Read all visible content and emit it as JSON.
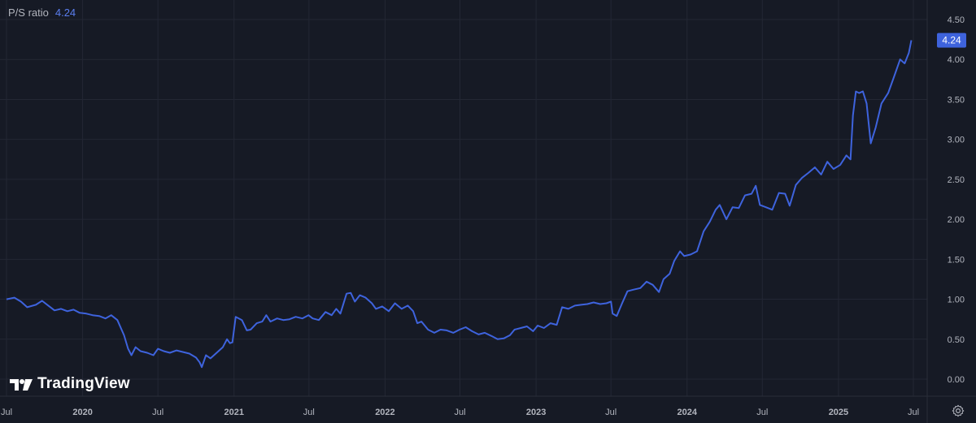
{
  "legend": {
    "label": "P/S ratio",
    "value": "4.24"
  },
  "brand": {
    "name": "TradingView"
  },
  "icons": {
    "logo": "tradingview-logo-icon",
    "settings": "gear-icon"
  },
  "colors": {
    "background": "#161a25",
    "line": "#3e63dd",
    "grid": "#232734",
    "axis_text": "#b2b5be",
    "badge": "#3e63dd"
  },
  "chart_data": {
    "type": "line",
    "title": "",
    "xlabel": "",
    "ylabel": "",
    "grid": true,
    "y_axis_position": "right",
    "ylim": [
      -0.1,
      4.6
    ],
    "y_ticks": [
      "0.00",
      "0.50",
      "1.00",
      "1.50",
      "2.00",
      "2.50",
      "3.00",
      "3.50",
      "4.00",
      "4.50"
    ],
    "x_range": [
      "2019-07-01",
      "2025-07-15"
    ],
    "x_ticks": [
      {
        "date": "2019-07-01",
        "label": "Jul"
      },
      {
        "date": "2020-01-01",
        "label": "2020"
      },
      {
        "date": "2020-07-01",
        "label": "Jul"
      },
      {
        "date": "2021-01-01",
        "label": "2021"
      },
      {
        "date": "2021-07-01",
        "label": "Jul"
      },
      {
        "date": "2022-01-01",
        "label": "2022"
      },
      {
        "date": "2022-07-01",
        "label": "Jul"
      },
      {
        "date": "2023-01-01",
        "label": "2023"
      },
      {
        "date": "2023-07-01",
        "label": "Jul"
      },
      {
        "date": "2024-01-01",
        "label": "2024"
      },
      {
        "date": "2024-07-01",
        "label": "Jul"
      },
      {
        "date": "2025-01-01",
        "label": "2025"
      },
      {
        "date": "2025-07-01",
        "label": "Jul"
      }
    ],
    "last_value_label": "4.24",
    "series": [
      {
        "name": "P/S ratio",
        "points": [
          [
            "2019-07-01",
            1.0
          ],
          [
            "2019-07-20",
            1.02
          ],
          [
            "2019-08-05",
            0.97
          ],
          [
            "2019-08-20",
            0.9
          ],
          [
            "2019-09-10",
            0.93
          ],
          [
            "2019-09-25",
            0.98
          ],
          [
            "2019-10-10",
            0.92
          ],
          [
            "2019-10-25",
            0.86
          ],
          [
            "2019-11-10",
            0.88
          ],
          [
            "2019-11-25",
            0.85
          ],
          [
            "2019-12-10",
            0.87
          ],
          [
            "2019-12-25",
            0.83
          ],
          [
            "2020-01-10",
            0.82
          ],
          [
            "2020-01-25",
            0.8
          ],
          [
            "2020-02-10",
            0.79
          ],
          [
            "2020-02-25",
            0.76
          ],
          [
            "2020-03-10",
            0.8
          ],
          [
            "2020-03-25",
            0.74
          ],
          [
            "2020-04-10",
            0.55
          ],
          [
            "2020-04-20",
            0.38
          ],
          [
            "2020-04-28",
            0.3
          ],
          [
            "2020-05-08",
            0.4
          ],
          [
            "2020-05-20",
            0.35
          ],
          [
            "2020-06-05",
            0.33
          ],
          [
            "2020-06-20",
            0.3
          ],
          [
            "2020-07-01",
            0.38
          ],
          [
            "2020-07-15",
            0.35
          ],
          [
            "2020-07-30",
            0.33
          ],
          [
            "2020-08-15",
            0.36
          ],
          [
            "2020-08-30",
            0.34
          ],
          [
            "2020-09-15",
            0.32
          ],
          [
            "2020-10-01",
            0.27
          ],
          [
            "2020-10-10",
            0.21
          ],
          [
            "2020-10-15",
            0.15
          ],
          [
            "2020-10-25",
            0.3
          ],
          [
            "2020-11-05",
            0.26
          ],
          [
            "2020-11-20",
            0.33
          ],
          [
            "2020-12-05",
            0.4
          ],
          [
            "2020-12-15",
            0.5
          ],
          [
            "2020-12-22",
            0.45
          ],
          [
            "2020-12-28",
            0.46
          ],
          [
            "2021-01-05",
            0.78
          ],
          [
            "2021-01-20",
            0.74
          ],
          [
            "2021-02-01",
            0.61
          ],
          [
            "2021-02-10",
            0.62
          ],
          [
            "2021-02-25",
            0.7
          ],
          [
            "2021-03-10",
            0.72
          ],
          [
            "2021-03-20",
            0.8
          ],
          [
            "2021-03-30",
            0.72
          ],
          [
            "2021-04-15",
            0.76
          ],
          [
            "2021-04-30",
            0.74
          ],
          [
            "2021-05-15",
            0.75
          ],
          [
            "2021-05-30",
            0.78
          ],
          [
            "2021-06-15",
            0.76
          ],
          [
            "2021-06-30",
            0.8
          ],
          [
            "2021-07-10",
            0.76
          ],
          [
            "2021-07-25",
            0.74
          ],
          [
            "2021-08-10",
            0.84
          ],
          [
            "2021-08-25",
            0.8
          ],
          [
            "2021-09-05",
            0.88
          ],
          [
            "2021-09-15",
            0.82
          ],
          [
            "2021-09-30",
            1.07
          ],
          [
            "2021-10-10",
            1.08
          ],
          [
            "2021-10-20",
            0.97
          ],
          [
            "2021-11-01",
            1.05
          ],
          [
            "2021-11-15",
            1.02
          ],
          [
            "2021-11-30",
            0.95
          ],
          [
            "2021-12-10",
            0.88
          ],
          [
            "2021-12-25",
            0.91
          ],
          [
            "2022-01-10",
            0.85
          ],
          [
            "2022-01-25",
            0.95
          ],
          [
            "2022-02-10",
            0.88
          ],
          [
            "2022-02-25",
            0.92
          ],
          [
            "2022-03-10",
            0.85
          ],
          [
            "2022-03-20",
            0.7
          ],
          [
            "2022-03-30",
            0.72
          ],
          [
            "2022-04-15",
            0.62
          ],
          [
            "2022-04-30",
            0.58
          ],
          [
            "2022-05-15",
            0.62
          ],
          [
            "2022-05-30",
            0.61
          ],
          [
            "2022-06-15",
            0.58
          ],
          [
            "2022-06-30",
            0.62
          ],
          [
            "2022-07-15",
            0.65
          ],
          [
            "2022-07-30",
            0.6
          ],
          [
            "2022-08-15",
            0.56
          ],
          [
            "2022-08-30",
            0.58
          ],
          [
            "2022-09-15",
            0.54
          ],
          [
            "2022-09-30",
            0.5
          ],
          [
            "2022-10-15",
            0.51
          ],
          [
            "2022-10-30",
            0.55
          ],
          [
            "2022-11-10",
            0.62
          ],
          [
            "2022-11-25",
            0.64
          ],
          [
            "2022-12-10",
            0.66
          ],
          [
            "2022-12-25",
            0.6
          ],
          [
            "2023-01-05",
            0.67
          ],
          [
            "2023-01-20",
            0.64
          ],
          [
            "2023-02-05",
            0.7
          ],
          [
            "2023-02-20",
            0.68
          ],
          [
            "2023-03-05",
            0.9
          ],
          [
            "2023-03-20",
            0.88
          ],
          [
            "2023-04-05",
            0.92
          ],
          [
            "2023-04-20",
            0.93
          ],
          [
            "2023-05-05",
            0.94
          ],
          [
            "2023-05-20",
            0.96
          ],
          [
            "2023-06-05",
            0.94
          ],
          [
            "2023-06-20",
            0.95
          ],
          [
            "2023-07-01",
            0.97
          ],
          [
            "2023-07-05",
            0.82
          ],
          [
            "2023-07-15",
            0.79
          ],
          [
            "2023-07-28",
            0.95
          ],
          [
            "2023-08-10",
            1.1
          ],
          [
            "2023-08-25",
            1.12
          ],
          [
            "2023-09-10",
            1.14
          ],
          [
            "2023-09-25",
            1.22
          ],
          [
            "2023-10-10",
            1.18
          ],
          [
            "2023-10-25",
            1.09
          ],
          [
            "2023-11-05",
            1.25
          ],
          [
            "2023-11-20",
            1.32
          ],
          [
            "2023-12-01",
            1.48
          ],
          [
            "2023-12-15",
            1.6
          ],
          [
            "2023-12-25",
            1.54
          ],
          [
            "2024-01-10",
            1.56
          ],
          [
            "2024-01-25",
            1.6
          ],
          [
            "2024-02-10",
            1.85
          ],
          [
            "2024-02-25",
            1.97
          ],
          [
            "2024-03-10",
            2.12
          ],
          [
            "2024-03-20",
            2.18
          ],
          [
            "2024-04-05",
            2.0
          ],
          [
            "2024-04-20",
            2.15
          ],
          [
            "2024-05-05",
            2.14
          ],
          [
            "2024-05-20",
            2.3
          ],
          [
            "2024-06-05",
            2.32
          ],
          [
            "2024-06-15",
            2.42
          ],
          [
            "2024-06-25",
            2.18
          ],
          [
            "2024-07-10",
            2.15
          ],
          [
            "2024-07-25",
            2.12
          ],
          [
            "2024-08-10",
            2.33
          ],
          [
            "2024-08-25",
            2.32
          ],
          [
            "2024-09-05",
            2.17
          ],
          [
            "2024-09-20",
            2.43
          ],
          [
            "2024-10-05",
            2.52
          ],
          [
            "2024-10-20",
            2.58
          ],
          [
            "2024-11-05",
            2.65
          ],
          [
            "2024-11-20",
            2.56
          ],
          [
            "2024-12-05",
            2.72
          ],
          [
            "2024-12-20",
            2.63
          ],
          [
            "2025-01-05",
            2.68
          ],
          [
            "2025-01-20",
            2.8
          ],
          [
            "2025-01-30",
            2.75
          ],
          [
            "2025-02-05",
            3.3
          ],
          [
            "2025-02-12",
            3.6
          ],
          [
            "2025-02-20",
            3.58
          ],
          [
            "2025-03-01",
            3.6
          ],
          [
            "2025-03-10",
            3.45
          ],
          [
            "2025-03-20",
            2.95
          ],
          [
            "2025-04-01",
            3.15
          ],
          [
            "2025-04-15",
            3.45
          ],
          [
            "2025-05-01",
            3.58
          ],
          [
            "2025-05-15",
            3.78
          ],
          [
            "2025-05-30",
            4.0
          ],
          [
            "2025-06-10",
            3.95
          ],
          [
            "2025-06-20",
            4.08
          ],
          [
            "2025-06-26",
            4.24
          ]
        ]
      }
    ]
  }
}
